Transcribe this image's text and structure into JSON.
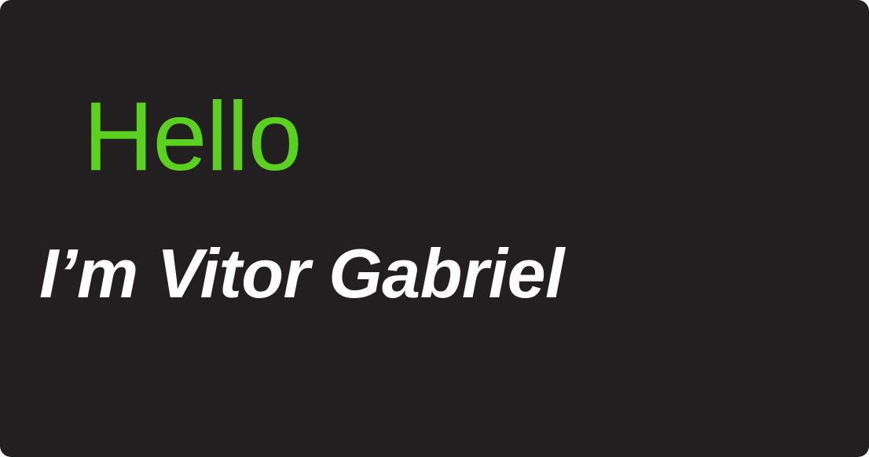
{
  "hero": {
    "greeting": "Hello",
    "intro": "I’m Vitor Gabriel"
  },
  "colors": {
    "background": "#231f20",
    "accent": "#5ad11f",
    "text": "#ffffff"
  }
}
